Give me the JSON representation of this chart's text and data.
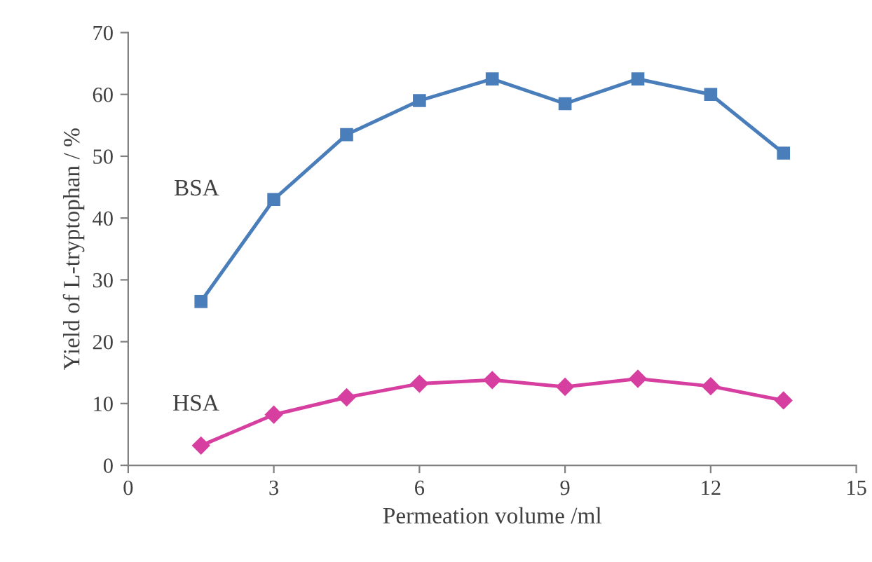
{
  "chart_data": {
    "type": "line",
    "xlabel": "Permeation volume /ml",
    "ylabel": "Yield of L-tryptophan / %",
    "x": [
      1.5,
      3,
      4.5,
      6,
      7.5,
      9,
      10.5,
      12,
      13.5
    ],
    "series": [
      {
        "name": "BSA",
        "color": "#4a7ebb",
        "marker": "square",
        "values": [
          26.5,
          43,
          53.5,
          59,
          62.5,
          58.5,
          62.5,
          60,
          50.5
        ]
      },
      {
        "name": "HSA",
        "color": "#d63fa0",
        "marker": "diamond",
        "values": [
          3.2,
          8.2,
          11,
          13.2,
          13.8,
          12.7,
          14,
          12.8,
          10.5
        ]
      }
    ],
    "xlim": [
      0,
      15
    ],
    "xticks": [
      0,
      3,
      6,
      9,
      12,
      15
    ],
    "ylim": [
      0,
      70
    ],
    "yticks": [
      0,
      10,
      20,
      30,
      40,
      50,
      60,
      70
    ],
    "grid": false,
    "legend": false,
    "line_style": "solid"
  }
}
